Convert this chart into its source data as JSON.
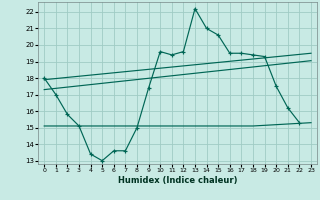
{
  "xlabel": "Humidex (Indice chaleur)",
  "bg_color": "#c8eae4",
  "grid_color": "#a0ccc4",
  "line_color": "#006655",
  "xlim": [
    -0.5,
    23.5
  ],
  "ylim": [
    12.8,
    22.6
  ],
  "xticks": [
    0,
    1,
    2,
    3,
    4,
    5,
    6,
    7,
    8,
    9,
    10,
    11,
    12,
    13,
    14,
    15,
    16,
    17,
    18,
    19,
    20,
    21,
    22,
    23
  ],
  "yticks": [
    13,
    14,
    15,
    16,
    17,
    18,
    19,
    20,
    21,
    22
  ],
  "main_x": [
    0,
    1,
    2,
    3,
    4,
    5,
    6,
    7,
    8,
    9,
    10,
    11,
    12,
    13,
    14,
    15,
    16,
    17,
    18,
    19,
    20,
    21,
    22
  ],
  "main_y": [
    18.0,
    17.0,
    15.8,
    15.1,
    13.4,
    13.0,
    13.6,
    13.6,
    15.0,
    17.4,
    19.6,
    19.4,
    19.6,
    22.2,
    21.0,
    20.6,
    19.5,
    19.5,
    19.4,
    19.3,
    17.5,
    16.2,
    15.3
  ],
  "upper_line_x": [
    0,
    23
  ],
  "upper_line_y": [
    17.9,
    19.5
  ],
  "lower_line_x": [
    0,
    23
  ],
  "lower_line_y": [
    17.3,
    19.05
  ],
  "flat_line_x": [
    0,
    3,
    18,
    23
  ],
  "flat_line_y": [
    15.1,
    15.1,
    15.1,
    15.3
  ]
}
